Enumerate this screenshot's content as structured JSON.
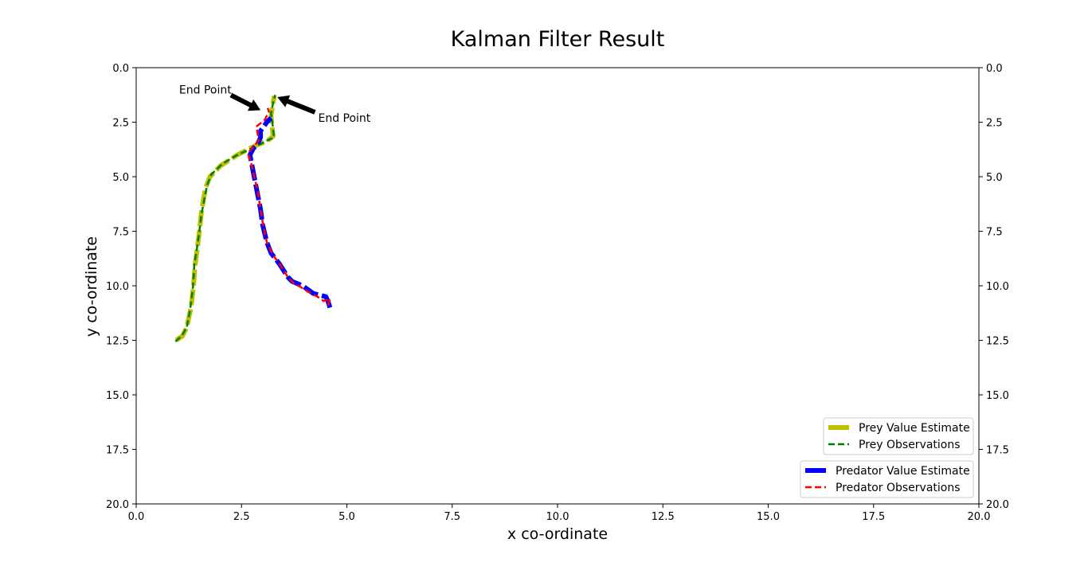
{
  "chart_data": {
    "type": "line",
    "title": "Kalman Filter Result",
    "xlabel": "x co-ordinate",
    "ylabel": "y co-ordinate",
    "xlim": [
      0,
      20
    ],
    "ylim": [
      20,
      0
    ],
    "y_inverted": true,
    "y_ticks_both_sides": true,
    "grid": false,
    "xticks": [
      "0.0",
      "2.5",
      "5.0",
      "7.5",
      "10.0",
      "12.5",
      "15.0",
      "17.5",
      "20.0"
    ],
    "yticks": [
      "0.0",
      "2.5",
      "5.0",
      "7.5",
      "10.0",
      "12.5",
      "15.0",
      "17.5",
      "20.0"
    ],
    "series": [
      {
        "name": "Prey Value Estimate",
        "color": "#bfbf00",
        "style": "dashed-thick",
        "legend_group": 1,
        "points": [
          [
            0.95,
            12.5
          ],
          [
            1.1,
            12.3
          ],
          [
            1.2,
            11.9
          ],
          [
            1.3,
            11.0
          ],
          [
            1.33,
            10.5
          ],
          [
            1.36,
            10.0
          ],
          [
            1.4,
            9.0
          ],
          [
            1.45,
            8.3
          ],
          [
            1.5,
            7.5
          ],
          [
            1.55,
            6.6
          ],
          [
            1.6,
            6.0
          ],
          [
            1.65,
            5.5
          ],
          [
            1.75,
            5.0
          ],
          [
            2.0,
            4.5
          ],
          [
            2.4,
            4.0
          ],
          [
            2.8,
            3.6
          ],
          [
            3.0,
            3.45
          ],
          [
            3.15,
            3.3
          ],
          [
            3.25,
            3.15
          ],
          [
            3.22,
            2.6
          ],
          [
            3.2,
            2.2
          ],
          [
            3.25,
            1.6
          ],
          [
            3.28,
            1.3
          ]
        ]
      },
      {
        "name": "Prey Observations",
        "color": "#008000",
        "style": "dashed",
        "legend_group": 1,
        "points": [
          [
            0.93,
            12.55
          ],
          [
            1.08,
            12.3
          ],
          [
            1.2,
            11.9
          ],
          [
            1.28,
            11.1
          ],
          [
            1.32,
            10.5
          ],
          [
            1.35,
            10.0
          ],
          [
            1.38,
            9.0
          ],
          [
            1.44,
            8.3
          ],
          [
            1.5,
            7.5
          ],
          [
            1.55,
            6.7
          ],
          [
            1.62,
            6.0
          ],
          [
            1.68,
            5.4
          ],
          [
            1.78,
            4.9
          ],
          [
            2.05,
            4.4
          ],
          [
            2.4,
            4.0
          ],
          [
            2.8,
            3.65
          ],
          [
            3.0,
            3.45
          ],
          [
            3.15,
            3.3
          ],
          [
            3.27,
            3.2
          ],
          [
            3.23,
            2.5
          ],
          [
            3.2,
            2.1
          ],
          [
            3.26,
            1.5
          ],
          [
            3.3,
            1.25
          ]
        ]
      },
      {
        "name": "Predator Value Estimate",
        "color": "#0000ff",
        "style": "dashed-thick",
        "legend_group": 2,
        "points": [
          [
            4.6,
            11.0
          ],
          [
            4.55,
            10.7
          ],
          [
            4.5,
            10.5
          ],
          [
            4.3,
            10.4
          ],
          [
            4.2,
            10.35
          ],
          [
            3.95,
            10.0
          ],
          [
            3.7,
            9.8
          ],
          [
            3.6,
            9.6
          ],
          [
            3.4,
            9.0
          ],
          [
            3.2,
            8.5
          ],
          [
            3.1,
            8.0
          ],
          [
            3.0,
            7.2
          ],
          [
            2.95,
            6.5
          ],
          [
            2.85,
            5.5
          ],
          [
            2.8,
            5.0
          ],
          [
            2.75,
            4.5
          ],
          [
            2.7,
            4.0
          ],
          [
            2.78,
            3.7
          ],
          [
            2.88,
            3.5
          ],
          [
            2.95,
            3.2
          ],
          [
            2.95,
            2.9
          ],
          [
            3.1,
            2.5
          ],
          [
            3.2,
            2.3
          ]
        ]
      },
      {
        "name": "Predator Observations",
        "color": "#ff0000",
        "style": "dashed",
        "legend_group": 2,
        "points": [
          [
            4.55,
            10.9
          ],
          [
            4.6,
            10.6
          ],
          [
            4.45,
            10.7
          ],
          [
            4.3,
            10.5
          ],
          [
            4.1,
            10.3
          ],
          [
            3.9,
            10.05
          ],
          [
            3.75,
            9.9
          ],
          [
            3.6,
            9.6
          ],
          [
            3.4,
            9.0
          ],
          [
            3.25,
            8.6
          ],
          [
            3.1,
            8.0
          ],
          [
            3.02,
            7.3
          ],
          [
            2.95,
            6.5
          ],
          [
            2.88,
            5.6
          ],
          [
            2.8,
            5.0
          ],
          [
            2.73,
            4.4
          ],
          [
            2.65,
            3.9
          ],
          [
            2.78,
            3.65
          ],
          [
            2.9,
            3.35
          ],
          [
            2.88,
            3.0
          ],
          [
            2.85,
            2.7
          ],
          [
            3.05,
            2.4
          ],
          [
            3.15,
            2.0
          ],
          [
            3.12,
            1.85
          ]
        ]
      }
    ],
    "annotations": [
      {
        "text": "End Point",
        "xy": [
          2.95,
          1.95
        ],
        "xytext": [
          1.0,
          1.0
        ]
      },
      {
        "text": "End Point",
        "xy": [
          3.35,
          1.35
        ],
        "xytext": [
          4.3,
          2.3
        ]
      }
    ],
    "legends": [
      {
        "placement": "lower-right",
        "entries": [
          "Prey Value Estimate",
          "Prey Observations"
        ]
      },
      {
        "placement": "lower-right",
        "entries": [
          "Predator Value Estimate",
          "Predator Observations"
        ]
      }
    ]
  }
}
